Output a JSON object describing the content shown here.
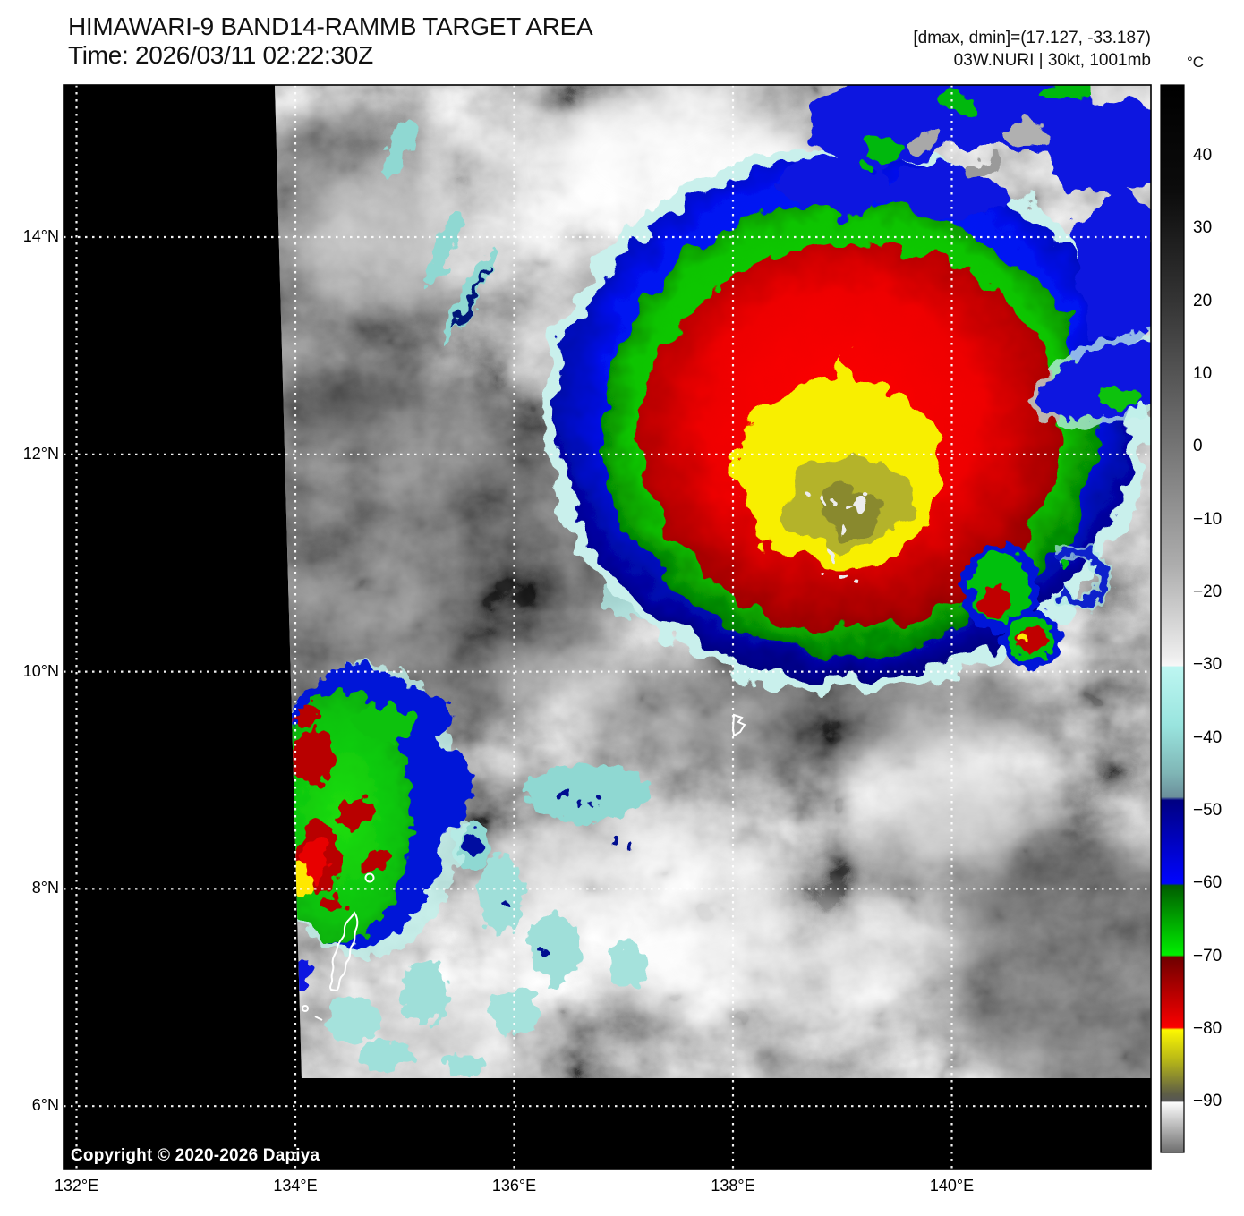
{
  "header": {
    "title": "HIMAWARI-9 BAND14-RAMMB TARGET AREA",
    "time": "Time: 2026/03/11 02:22:30Z",
    "dmax_dmin": "[dmax, dmin]=(17.127, -33.187)",
    "storm_info": "03W.NURI | 30kt, 1001mb"
  },
  "map": {
    "copyright": "Copyright © 2020-2026 Dapiya"
  },
  "axes": {
    "lon_ticks": [
      {
        "label": "132°E",
        "deg": 132
      },
      {
        "label": "134°E",
        "deg": 134
      },
      {
        "label": "136°E",
        "deg": 136
      },
      {
        "label": "138°E",
        "deg": 138
      },
      {
        "label": "140°E",
        "deg": 140
      }
    ],
    "lat_ticks": [
      {
        "label": "14°N",
        "deg": 14
      },
      {
        "label": "12°N",
        "deg": 12
      },
      {
        "label": "10°N",
        "deg": 10
      },
      {
        "label": "8°N",
        "deg": 8
      },
      {
        "label": "6°N",
        "deg": 6
      }
    ]
  },
  "colorbar": {
    "unit": "°C",
    "ticks": [
      "40",
      "30",
      "20",
      "10",
      "0",
      "−10",
      "−20",
      "−30",
      "−40",
      "−50",
      "−60",
      "−70",
      "−80",
      "−90"
    ],
    "tick_values": [
      40,
      30,
      20,
      10,
      0,
      -10,
      -20,
      -30,
      -40,
      -50,
      -60,
      -70,
      -80,
      -90
    ]
  },
  "chart_data": {
    "type": "heatmap",
    "title": "HIMAWARI-9 BAND14-RAMMB TARGET AREA",
    "timestamp": "2026/03/11 02:22:30Z",
    "dmax_c": 17.127,
    "dmin_c": -33.187,
    "storm": {
      "id": "03W.NURI",
      "intensity_kt": 30,
      "pressure_mb": 1001
    },
    "x_axis": {
      "unit": "°E",
      "ticks_deg": [
        132,
        134,
        136,
        138,
        140
      ],
      "range_deg": [
        131.88,
        141.9
      ]
    },
    "y_axis": {
      "unit": "°N",
      "ticks_deg": [
        14,
        12,
        10,
        8,
        6
      ],
      "range_deg": [
        5.42,
        15.4
      ]
    },
    "colorbar": {
      "unit": "°C",
      "ticks": [
        40,
        30,
        20,
        10,
        0,
        -10,
        -20,
        -30,
        -40,
        -50,
        -60,
        -70,
        -80,
        -90
      ],
      "top_value": 50,
      "bottom_value": -97,
      "segments": [
        {
          "range_c": [
            50,
            -30
          ],
          "colors": "black to white grayscale"
        },
        {
          "range_c": [
            -30,
            -48
          ],
          "colors": "pale cyan to gray-teal"
        },
        {
          "range_c": [
            -48,
            -60
          ],
          "colors": "navy to bright blue"
        },
        {
          "range_c": [
            -60,
            -70
          ],
          "colors": "dark green to bright green"
        },
        {
          "range_c": [
            -70,
            -80
          ],
          "colors": "dark red to bright red"
        },
        {
          "range_c": [
            -80,
            -90
          ],
          "colors": "yellow to olive to dark gray"
        },
        {
          "range_c": [
            -90,
            -97
          ],
          "colors": "white to gray"
        }
      ]
    },
    "grid": "white dotted graticule every 2 degrees",
    "legend_position": "right-colorbar"
  }
}
